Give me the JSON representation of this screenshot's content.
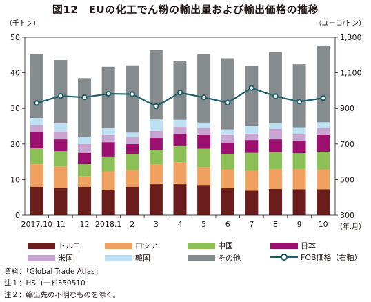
{
  "title": "図12　EUの化工でん粉の輸出量および輸出価格の推移",
  "left_axis_unit": "（千トン）",
  "right_axis_unit": "（ユーロ/トン）",
  "x_axis_unit": "（年.月）",
  "notes": [
    "資料：「Global Trade Atlas」",
    "注１：HSコード350510",
    "注２：輸出先の不明なものを除く。"
  ],
  "chart_data": {
    "type": "bar",
    "stacked": true,
    "categories": [
      "2017.10",
      "11",
      "12",
      "2018.1",
      "2",
      "3",
      "4",
      "5",
      "6",
      "7",
      "8",
      "9",
      "10"
    ],
    "ylim_left": [
      0,
      50
    ],
    "yticks_left": [
      0,
      10,
      20,
      30,
      40,
      50
    ],
    "ylim_right": [
      300,
      1300
    ],
    "yticks_right": [
      "300",
      "500",
      "700",
      "900",
      "1,100",
      "1,300"
    ],
    "grid": false,
    "legend_position": "bottom",
    "series": [
      {
        "name": "トルコ",
        "color": "#6b1d1c",
        "values": [
          8,
          7.7,
          8,
          7,
          8,
          8.7,
          8.7,
          8.3,
          7.6,
          6.9,
          7.4,
          7.3,
          7.3
        ]
      },
      {
        "name": "ロシア",
        "color": "#f0a05f",
        "values": [
          6.3,
          6,
          3,
          5.3,
          4.7,
          5.5,
          6.2,
          5.2,
          5.2,
          5.6,
          5.6,
          5.7,
          5.5
        ]
      },
      {
        "name": "中国",
        "color": "#8cc057",
        "values": [
          4.5,
          4.3,
          3.3,
          4.2,
          4.5,
          4.2,
          4.5,
          5.2,
          4.3,
          5,
          4.7,
          4.4,
          5
        ]
      },
      {
        "name": "日本",
        "color": "#9b0f6f",
        "values": [
          4.5,
          3.3,
          3.2,
          4,
          2.8,
          3.3,
          3.4,
          3.8,
          3.3,
          3.6,
          3.6,
          3.5,
          4.7
        ]
      },
      {
        "name": "米国",
        "color": "#c7a5d0",
        "values": [
          2,
          2.2,
          2.5,
          2,
          2,
          2,
          2,
          2,
          2.1,
          1.8,
          3,
          1.8,
          2
        ]
      },
      {
        "name": "韓国",
        "color": "#bde0f2",
        "values": [
          2,
          2.3,
          2,
          2,
          1.2,
          3.2,
          2,
          1.5,
          1.6,
          2.1,
          1.6,
          2,
          1.6
        ]
      },
      {
        "name": "その他",
        "color": "#868b8e",
        "values": [
          17.9,
          17.8,
          16.5,
          17.2,
          18.9,
          19.5,
          16.4,
          19.2,
          20,
          17,
          19.9,
          17.7,
          21.6
        ]
      }
    ],
    "line_series": {
      "name": "FOB価格（右軸）",
      "axis": "right",
      "color": "#1f5f6c",
      "values": [
        930,
        970,
        962,
        982,
        980,
        912,
        988,
        962,
        932,
        1015,
        968,
        938,
        958
      ]
    }
  }
}
